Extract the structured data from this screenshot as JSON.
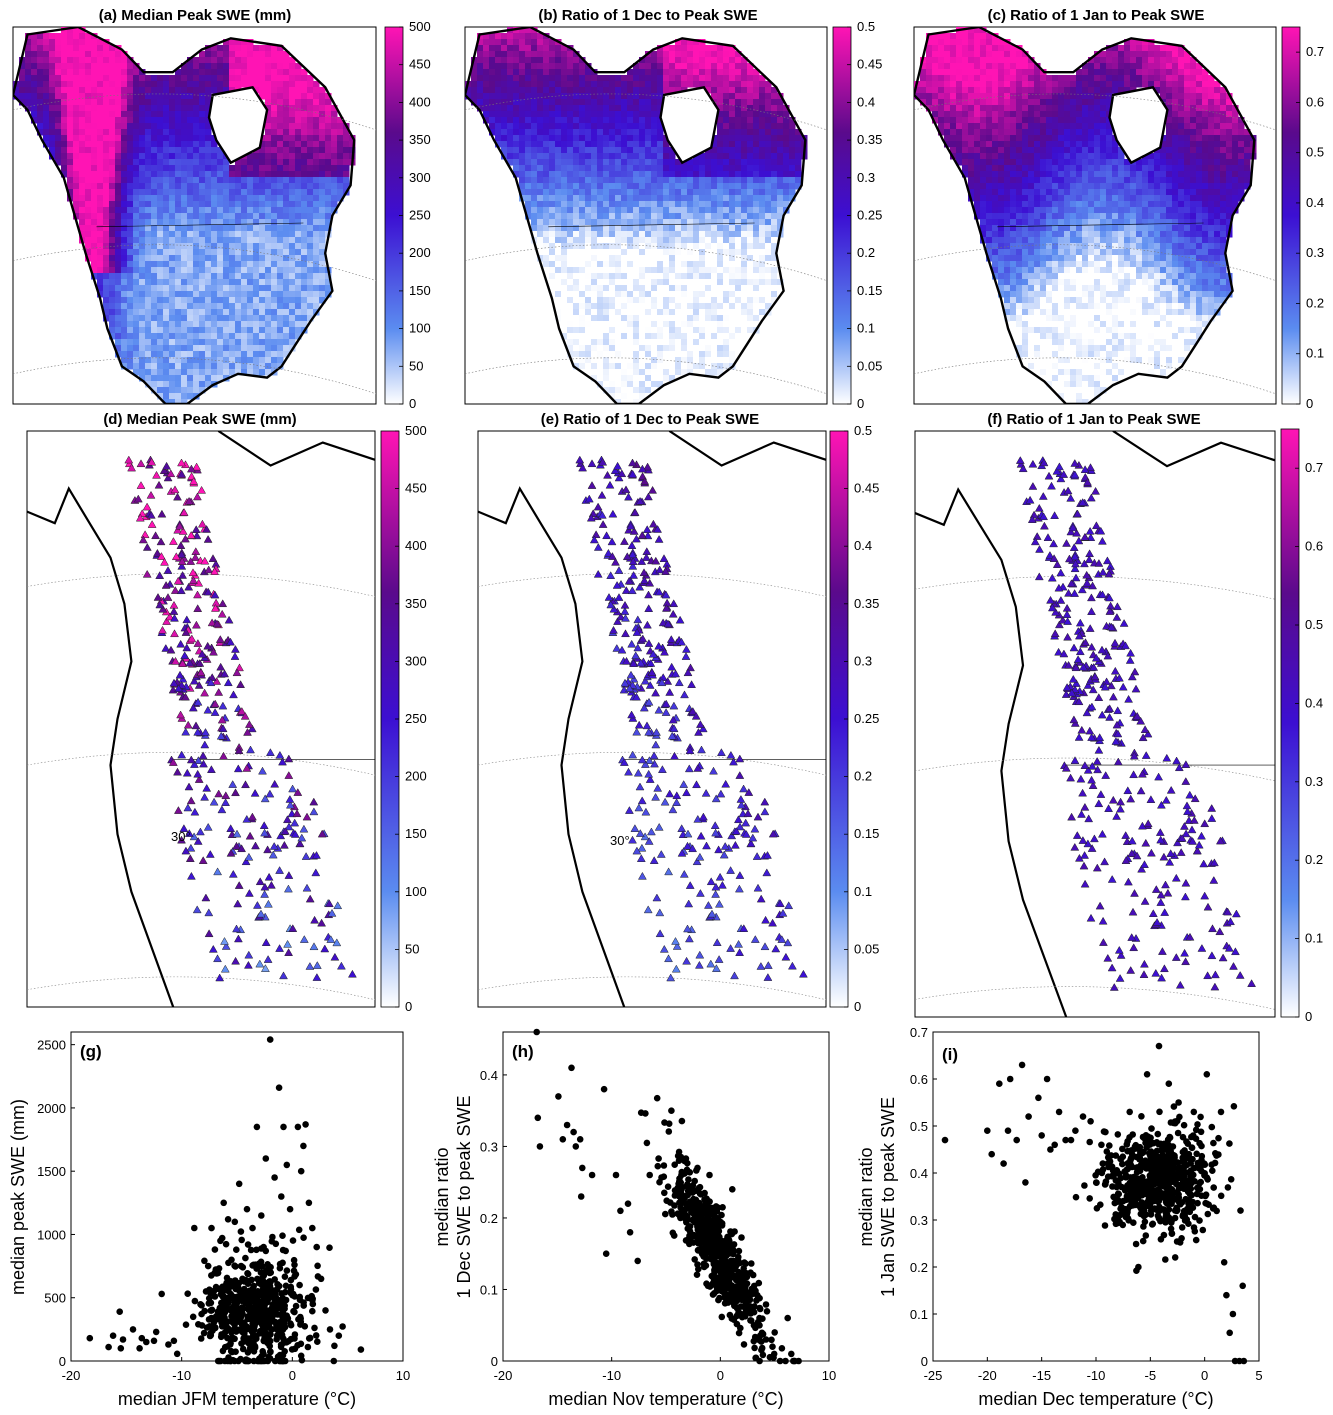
{
  "colors": {
    "ramp": [
      "#ffffff",
      "#5b8cf0",
      "#3c0fd2",
      "#5a0a8c",
      "#ff14b4"
    ],
    "ramp_positions": [
      0,
      0.2,
      0.5,
      0.72,
      1
    ],
    "land": "#ffffff",
    "coast": "#000000",
    "scatter_point": "#000000"
  },
  "map_panels": [
    {
      "title": "(a) Median Peak SWE (mm)",
      "kind": "gridded",
      "variable": "median peak SWE",
      "cbar_range": [
        0,
        500
      ],
      "cbar_ticks": [
        "0",
        "50",
        "100",
        "150",
        "200",
        "250",
        "300",
        "350",
        "400",
        "450",
        "500"
      ]
    },
    {
      "title": "(b) Ratio of 1 Dec to Peak SWE",
      "kind": "gridded",
      "variable": "1 Dec / peak SWE",
      "cbar_range": [
        0,
        0.5
      ],
      "cbar_ticks": [
        "0",
        "0.05",
        "0.1",
        "0.15",
        "0.2",
        "0.25",
        "0.3",
        "0.35",
        "0.4",
        "0.45",
        "0.5"
      ]
    },
    {
      "title": "(c) Ratio of 1 Jan to Peak SWE",
      "kind": "gridded",
      "variable": "1 Jan / peak SWE",
      "cbar_range": [
        0,
        0.75
      ],
      "cbar_ticks": [
        "0",
        "0.1",
        "0.2",
        "0.3",
        "0.4",
        "0.5",
        "0.6",
        "0.7"
      ]
    },
    {
      "title": "(d) Median Peak SWE (mm)",
      "kind": "stations",
      "variable": "median peak SWE",
      "cbar_range": [
        0,
        500
      ],
      "cbar_ticks": [
        "0",
        "50",
        "100",
        "150",
        "200",
        "250",
        "300",
        "350",
        "400",
        "450",
        "500"
      ],
      "lat_label": "30°"
    },
    {
      "title": "(e) Ratio of 1 Dec to Peak SWE",
      "kind": "stations",
      "variable": "1 Dec / peak SWE",
      "cbar_range": [
        0,
        0.5
      ],
      "cbar_ticks": [
        "0",
        "0.05",
        "0.1",
        "0.15",
        "0.2",
        "0.25",
        "0.3",
        "0.35",
        "0.4",
        "0.45",
        "0.5"
      ],
      "lat_label": "30°"
    },
    {
      "title": "(f) Ratio of 1 Jan to Peak SWE",
      "kind": "stations",
      "variable": "1 Jan / peak SWE",
      "cbar_range": [
        0,
        0.75
      ],
      "cbar_ticks": [
        "0",
        "0.1",
        "0.2",
        "0.3",
        "0.4",
        "0.5",
        "0.6",
        "0.7"
      ],
      "lat_label": ""
    }
  ],
  "chart_data": [
    {
      "type": "scatter",
      "panel_label": "(g)",
      "xlabel": "median JFM temperature (°C)",
      "ylabel": "median peak SWE (mm)",
      "xlim": [
        -20,
        10
      ],
      "ylim": [
        0,
        2600
      ],
      "xticks": [
        -20,
        -10,
        0,
        10
      ],
      "yticks": [
        0,
        500,
        1000,
        1500,
        2000,
        2500
      ],
      "grid": false,
      "points": [
        [
          -18.3,
          180
        ],
        [
          -16.6,
          110
        ],
        [
          -16.2,
          200
        ],
        [
          -15.6,
          390
        ],
        [
          -15.3,
          170
        ],
        [
          -15.5,
          100
        ],
        [
          -14.4,
          250
        ],
        [
          -13.8,
          100
        ],
        [
          -13.6,
          180
        ],
        [
          -13.2,
          150
        ],
        [
          -12.5,
          160
        ],
        [
          -12.3,
          230
        ],
        [
          -11.8,
          530
        ],
        [
          -11.2,
          130
        ],
        [
          -10.7,
          160
        ],
        [
          -8.5,
          290
        ],
        [
          -8.2,
          440
        ],
        [
          -7.8,
          550
        ],
        [
          -7.6,
          750
        ],
        [
          -7.3,
          1050
        ],
        [
          -7.0,
          880
        ],
        [
          -6.5,
          950
        ],
        [
          -6.2,
          1250
        ],
        [
          -5.8,
          1120
        ],
        [
          -5.2,
          1100
        ],
        [
          -4.8,
          1400
        ],
        [
          -4.1,
          1200
        ],
        [
          -3.6,
          1050
        ],
        [
          -3.2,
          1850
        ],
        [
          -2.8,
          1150
        ],
        [
          -2.4,
          1600
        ],
        [
          -2.0,
          2540
        ],
        [
          -1.6,
          1450
        ],
        [
          -1.2,
          2160
        ],
        [
          -1.0,
          1300
        ],
        [
          -0.8,
          1850
        ],
        [
          -0.5,
          1550
        ],
        [
          -0.2,
          1200
        ],
        [
          0.5,
          1850
        ],
        [
          0.8,
          1500
        ],
        [
          1.0,
          1700
        ],
        [
          1.2,
          1870
        ],
        [
          1.5,
          1250
        ],
        [
          1.8,
          1050
        ],
        [
          2.2,
          900
        ],
        [
          2.6,
          650
        ],
        [
          3.0,
          400
        ],
        [
          3.4,
          250
        ],
        [
          3.8,
          120
        ],
        [
          4.2,
          200
        ],
        [
          6.2,
          90
        ],
        [
          -6.8,
          330
        ],
        [
          -6.4,
          210
        ],
        [
          -6.0,
          600
        ],
        [
          -5.5,
          800
        ],
        [
          -4.5,
          650
        ],
        [
          -4.0,
          920
        ],
        [
          -3.5,
          760
        ],
        [
          -2.6,
          900
        ],
        [
          -1.8,
          980
        ],
        [
          -0.6,
          870
        ],
        [
          0.2,
          760
        ],
        [
          -5.0,
          480
        ],
        [
          -3.0,
          420
        ],
        [
          -1.5,
          510
        ]
      ],
      "cloud": {
        "n": 600,
        "x_mean": -3.5,
        "x_sd": 2.3,
        "y_mean": 380,
        "y_sd": 190,
        "note_x_range": [
          -9,
          4
        ],
        "note_y_range": [
          0,
          1000
        ]
      }
    },
    {
      "type": "scatter",
      "panel_label": "(h)",
      "xlabel": "median Nov temperature (°C)",
      "ylabel_lines": [
        "median ratio",
        "1 Dec SWE to peak SWE"
      ],
      "xlim": [
        -20,
        10
      ],
      "ylim": [
        0,
        0.46
      ],
      "xticks": [
        -20,
        -10,
        0,
        10
      ],
      "yticks": [
        0,
        0.1,
        0.2,
        0.3,
        0.4
      ],
      "grid": false,
      "points": [
        [
          -16.9,
          0.46
        ],
        [
          -16.8,
          0.34
        ],
        [
          -16.6,
          0.3
        ],
        [
          -14.9,
          0.37
        ],
        [
          -14.5,
          0.31
        ],
        [
          -14.1,
          0.33
        ],
        [
          -13.7,
          0.41
        ],
        [
          -13.5,
          0.32
        ],
        [
          -13.3,
          0.3
        ],
        [
          -12.9,
          0.31
        ],
        [
          -12.7,
          0.27
        ],
        [
          -12.8,
          0.23
        ],
        [
          -11.8,
          0.26
        ],
        [
          -10.7,
          0.38
        ],
        [
          -10.5,
          0.15
        ],
        [
          -9.6,
          0.26
        ],
        [
          -9.2,
          0.21
        ],
        [
          -8.5,
          0.22
        ],
        [
          -8.3,
          0.18
        ],
        [
          -7.6,
          0.14
        ],
        [
          -6.5,
          0.26
        ],
        [
          -5.6,
          0.25
        ],
        [
          -4.5,
          0.35
        ],
        [
          -3.8,
          0.28
        ],
        [
          -2.1,
          0.27
        ],
        [
          -1.0,
          0.26
        ],
        [
          1.1,
          0.24
        ],
        [
          2.8,
          0.07
        ],
        [
          3.6,
          0.06
        ],
        [
          4.2,
          0.03
        ],
        [
          4.8,
          0.02
        ],
        [
          5.5,
          0.0
        ],
        [
          6.0,
          0.0
        ],
        [
          6.8,
          0.0
        ],
        [
          7.2,
          0.0
        ],
        [
          5.0,
          0.04
        ],
        [
          6.2,
          0.06
        ]
      ],
      "cloud": {
        "n": 650,
        "x_mean": -0.3,
        "x_sd": 2.1,
        "slope": -0.024,
        "intercept": 0.145,
        "y_sd": 0.03
      }
    },
    {
      "type": "scatter",
      "panel_label": "(i)",
      "xlabel": "median Dec temperature (°C)",
      "ylabel_lines": [
        "median ratio",
        "1 Jan SWE to peak SWE"
      ],
      "xlim": [
        -25,
        5
      ],
      "ylim": [
        0,
        0.7
      ],
      "xticks": [
        -25,
        -20,
        -15,
        -10,
        -5,
        0,
        5
      ],
      "yticks": [
        0,
        0.1,
        0.2,
        0.3,
        0.4,
        0.5,
        0.6,
        0.7
      ],
      "grid": false,
      "points": [
        [
          -23.9,
          0.47
        ],
        [
          -20.0,
          0.49
        ],
        [
          -19.6,
          0.44
        ],
        [
          -18.9,
          0.59
        ],
        [
          -18.5,
          0.42
        ],
        [
          -18.1,
          0.49
        ],
        [
          -17.9,
          0.6
        ],
        [
          -17.3,
          0.47
        ],
        [
          -16.8,
          0.63
        ],
        [
          -16.5,
          0.38
        ],
        [
          -16.2,
          0.52
        ],
        [
          -15.3,
          0.56
        ],
        [
          -15.0,
          0.48
        ],
        [
          -14.5,
          0.6
        ],
        [
          -14.2,
          0.45
        ],
        [
          -13.8,
          0.46
        ],
        [
          -13.4,
          0.53
        ],
        [
          -12.8,
          0.47
        ],
        [
          -12.3,
          0.47
        ],
        [
          -11.9,
          0.49
        ],
        [
          -11.2,
          0.52
        ],
        [
          -10.5,
          0.51
        ],
        [
          -9.5,
          0.46
        ],
        [
          -6.9,
          0.53
        ],
        [
          -6.1,
          0.2
        ],
        [
          -5.3,
          0.61
        ],
        [
          -4.2,
          0.67
        ],
        [
          -3.3,
          0.59
        ],
        [
          -2.4,
          0.55
        ],
        [
          -1.0,
          0.53
        ],
        [
          0.2,
          0.61
        ],
        [
          1.5,
          0.53
        ],
        [
          1.8,
          0.21
        ],
        [
          2.0,
          0.14
        ],
        [
          2.3,
          0.06
        ],
        [
          2.6,
          0.1
        ],
        [
          2.8,
          0.0
        ],
        [
          3.2,
          0.0
        ],
        [
          3.6,
          0.0
        ],
        [
          3.5,
          0.16
        ],
        [
          3.3,
          0.32
        ]
      ],
      "cloud": {
        "n": 650,
        "x_mean": -4.3,
        "x_sd": 2.4,
        "y_mean": 0.385,
        "y_sd": 0.048
      }
    }
  ]
}
